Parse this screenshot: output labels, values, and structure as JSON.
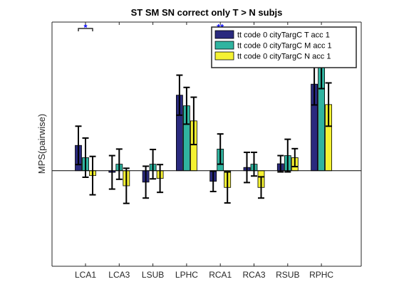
{
  "chart_data": {
    "type": "bar",
    "title": "ST SM SN correct only T > N subjs",
    "xlabel": "",
    "ylabel": "MPS(pairwise)",
    "categories": [
      "LCA1",
      "LCA3",
      "LSUB",
      "LPHC",
      "RCA1",
      "RCA3",
      "RSUB",
      "RPHC"
    ],
    "ylim": [
      -0.117,
      0.182
    ],
    "grid": false,
    "legend_position": "top-right",
    "series": [
      {
        "name": "tt code 0 cityTargC T acc 1",
        "color": "#2a2a7e",
        "values": [
          0.031,
          -0.002,
          -0.014,
          0.0925,
          -0.013,
          0.004,
          0.0085,
          0.106
        ],
        "errors": [
          0.0235,
          0.0205,
          0.0195,
          0.0245,
          0.0125,
          0.0185,
          0.01,
          0.0255
        ]
      },
      {
        "name": "tt code 0 cityTargC M acc 1",
        "color": "#30b4a0",
        "values": [
          0.016,
          0.008,
          0.008,
          0.0795,
          0.0265,
          0.008,
          0.0185,
          0.129
        ],
        "errors": [
          0.024,
          0.0185,
          0.018,
          0.0225,
          0.0185,
          0.0145,
          0.02,
          0.0285
        ]
      },
      {
        "name": "tt code 0 cityTargC N acc 1",
        "color": "#f5f232",
        "values": [
          -0.006,
          -0.0185,
          -0.0095,
          0.061,
          -0.0205,
          -0.0205,
          0.016,
          0.081
        ],
        "errors": [
          0.0235,
          0.0215,
          0.017,
          0.029,
          0.019,
          0.013,
          0.011,
          0.0265
        ]
      }
    ],
    "annotations": [
      {
        "text": "*",
        "category": "LCA1",
        "bracket": true,
        "color": "#0000ff"
      },
      {
        "text": "**",
        "category": "RCA1",
        "bracket": false,
        "color": "#0000ff"
      }
    ]
  }
}
